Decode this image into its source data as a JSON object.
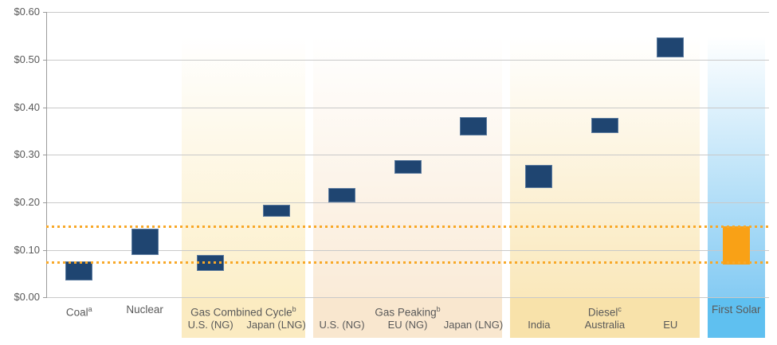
{
  "chart_data": {
    "type": "bar",
    "subtype": "floating_range_columns",
    "title": "",
    "xlabel": "",
    "ylabel": "",
    "ylim": [
      0,
      0.6
    ],
    "y_tick_step": 0.1,
    "y_tick_labels": [
      "$0.00",
      "$0.10",
      "$0.20",
      "$0.30",
      "$0.40",
      "$0.50",
      "$0.60"
    ],
    "grid": true,
    "legend_position": "none",
    "threshold_lines": [
      {
        "name": "upper-dotted-line",
        "value": 0.15
      },
      {
        "name": "lower-dotted-line",
        "value": 0.074
      }
    ],
    "colors": {
      "bar_default": "#1F4571",
      "bar_highlight": "#F9A116",
      "threshold": "#F8A828",
      "gridline": "#C9C9C9",
      "axis": "#9B9B9B",
      "text": "#595959"
    },
    "groups": [
      {
        "label": "Coal",
        "sup": "a",
        "panel": null,
        "bars": [
          {
            "label": "",
            "low": 0.035,
            "high": 0.076
          }
        ]
      },
      {
        "label": "Nuclear",
        "sup": "",
        "panel": null,
        "bars": [
          {
            "label": "",
            "low": 0.09,
            "high": 0.145
          }
        ]
      },
      {
        "label": "Gas Combined Cycle",
        "sup": "b",
        "panel": {
          "footer": "#FBEBC1",
          "bottom": "#FCEFC9"
        },
        "bars": [
          {
            "label": "U.S. (NG)",
            "low": 0.056,
            "high": 0.09
          },
          {
            "label": "Japan (LNG)",
            "low": 0.17,
            "high": 0.195
          }
        ]
      },
      {
        "label": "Gas Peaking",
        "sup": "b",
        "panel": {
          "footer": "#F9E7CF",
          "bottom": "#FAEBD8"
        },
        "bars": [
          {
            "label": "U.S. (NG)",
            "low": 0.2,
            "high": 0.23
          },
          {
            "label": "EU (NG)",
            "low": 0.26,
            "high": 0.288
          },
          {
            "label": "Japan (LNG)",
            "low": 0.34,
            "high": 0.38
          }
        ]
      },
      {
        "label": "Diesel",
        "sup": "c",
        "panel": {
          "footer": "#F8E2AA",
          "bottom": "#FAE8BB"
        },
        "bars": [
          {
            "label": "India",
            "low": 0.23,
            "high": 0.278
          },
          {
            "label": "Australia",
            "low": 0.345,
            "high": 0.377
          },
          {
            "label": "EU",
            "low": 0.505,
            "high": 0.547
          }
        ]
      },
      {
        "label": "First Solar",
        "sup": "",
        "panel": {
          "footer": "#5FC0F0",
          "bottom": "#85CBF3"
        },
        "highlight": true,
        "bars": [
          {
            "label": "",
            "low": 0.07,
            "high": 0.15
          }
        ]
      }
    ]
  }
}
